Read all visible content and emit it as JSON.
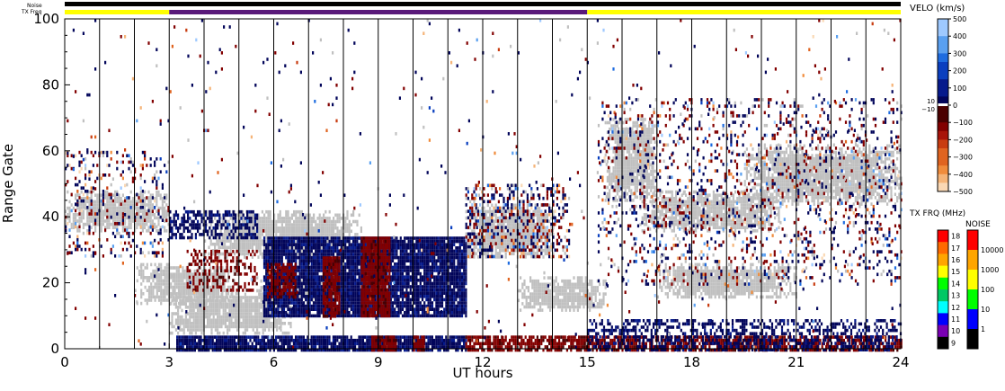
{
  "chart_data": {
    "type": "heatmap",
    "xlabel": "UT hours",
    "ylabel": "Range Gate",
    "xlim": [
      0,
      24
    ],
    "ylim": [
      0,
      100
    ],
    "x_ticks": [
      {
        "value": 0,
        "label": "0"
      },
      {
        "value": 3,
        "label": "3"
      },
      {
        "value": 6,
        "label": "6"
      },
      {
        "value": 9,
        "label": "9"
      },
      {
        "value": 12,
        "label": "12"
      },
      {
        "value": 15,
        "label": "15"
      },
      {
        "value": 18,
        "label": "18"
      },
      {
        "value": 21,
        "label": "21"
      },
      {
        "value": 24,
        "label": "24"
      }
    ],
    "y_ticks": [
      {
        "value": 0,
        "label": "0"
      },
      {
        "value": 20,
        "label": "20"
      },
      {
        "value": 40,
        "label": "40"
      },
      {
        "value": 60,
        "label": "60"
      },
      {
        "value": 80,
        "label": "80"
      },
      {
        "value": 100,
        "label": "100"
      }
    ],
    "status_bars": {
      "noise_label": "Noise",
      "txfreq_label": "TX Freq",
      "txfreq_segments": [
        {
          "start": 0,
          "end": 3,
          "color": "#ffff00"
        },
        {
          "start": 3,
          "end": 15,
          "color": "#5a1a7a"
        },
        {
          "start": 15,
          "end": 24,
          "color": "#ffff00"
        }
      ]
    },
    "velocity_scale": {
      "title": "VELO (km/s)",
      "tick_labels": [
        "500",
        "400",
        "300",
        "200",
        "100",
        "0",
        "−100",
        "−200",
        "−300",
        "−400",
        "−500"
      ],
      "tick_values": [
        500,
        400,
        300,
        200,
        100,
        0,
        -100,
        -200,
        -300,
        -400,
        -500
      ],
      "near_zero_labels": [
        "10",
        "−10"
      ],
      "colors_positive": [
        "#9ec9ff",
        "#5aa0f0",
        "#1e6ce0",
        "#0a3fbf",
        "#061a8c",
        "#02055a"
      ],
      "colors_negative": [
        "#4a0000",
        "#820000",
        "#a8140a",
        "#c83c10",
        "#e06420",
        "#f08c3c",
        "#f5b478",
        "#fad8b4"
      ],
      "ground_scatter_color": "#c0c0c0"
    },
    "txfreq_scale": {
      "title": "TX FRQ (MHz)",
      "labels": [
        "18",
        "17",
        "16",
        "15",
        "14",
        "13",
        "12",
        "11",
        "10",
        "9"
      ],
      "colors": [
        "#ff0000",
        "#ff6a00",
        "#ffa500",
        "#ffff00",
        "#00ff00",
        "#00c864",
        "#00ffff",
        "#0000ff",
        "#7a00b4",
        "#000000"
      ]
    },
    "noise_scale": {
      "title": "NOISE",
      "labels": [
        "10000",
        "1000",
        "100",
        "10",
        "1"
      ],
      "colors": [
        "#ff0000",
        "#ffa500",
        "#ffff00",
        "#00ff00",
        "#0000ff",
        "#000000"
      ]
    },
    "regions": [
      {
        "kind": "ground",
        "x0": 0.0,
        "x1": 3.0,
        "y0": 36,
        "y1": 48
      },
      {
        "kind": "ground",
        "x0": 2.0,
        "x1": 5.0,
        "y0": 14,
        "y1": 26
      },
      {
        "kind": "ground",
        "x0": 3.0,
        "x1": 6.5,
        "y0": 5,
        "y1": 17
      },
      {
        "kind": "ground",
        "x0": 4.0,
        "x1": 8.5,
        "y0": 28,
        "y1": 42
      },
      {
        "kind": "ground",
        "x0": 5.5,
        "x1": 8.0,
        "y0": 15,
        "y1": 22
      },
      {
        "kind": "ground",
        "x0": 15.5,
        "x1": 17.0,
        "y0": 45,
        "y1": 70
      },
      {
        "kind": "ground",
        "x0": 16.5,
        "x1": 20.5,
        "y0": 36,
        "y1": 48
      },
      {
        "kind": "ground",
        "x0": 17.0,
        "x1": 21.0,
        "y0": 16,
        "y1": 26
      },
      {
        "kind": "ground",
        "x0": 19.5,
        "x1": 24.0,
        "y0": 44,
        "y1": 62
      },
      {
        "kind": "ground",
        "x0": 13.0,
        "x1": 15.5,
        "y0": 12,
        "y1": 22
      },
      {
        "kind": "ground",
        "x0": 11.5,
        "x1": 14.0,
        "y0": 28,
        "y1": 44
      },
      {
        "kind": "pos",
        "x0": 5.7,
        "x1": 11.5,
        "y0": 10,
        "y1": 34,
        "density": 0.92
      },
      {
        "kind": "neg",
        "x0": 7.4,
        "x1": 7.9,
        "y0": 10,
        "y1": 28,
        "density": 0.85
      },
      {
        "kind": "neg",
        "x0": 8.5,
        "x1": 9.3,
        "y0": 10,
        "y1": 34,
        "density": 0.9
      },
      {
        "kind": "neg",
        "x0": 5.8,
        "x1": 6.6,
        "y0": 16,
        "y1": 26,
        "density": 0.7
      },
      {
        "kind": "pos",
        "x0": 3.2,
        "x1": 11.5,
        "y0": 0,
        "y1": 4,
        "density": 0.9
      },
      {
        "kind": "pos",
        "x0": 3.0,
        "x1": 5.5,
        "y0": 34,
        "y1": 42,
        "density": 0.55
      },
      {
        "kind": "neg",
        "x0": 3.5,
        "x1": 5.5,
        "y0": 18,
        "y1": 30,
        "density": 0.35
      },
      {
        "kind": "neg",
        "x0": 8.8,
        "x1": 9.5,
        "y0": 0,
        "y1": 4,
        "density": 0.85
      },
      {
        "kind": "neg",
        "x0": 10.0,
        "x1": 10.3,
        "y0": 0,
        "y1": 4,
        "density": 0.85
      },
      {
        "kind": "neg",
        "x0": 11.5,
        "x1": 24.0,
        "y0": 0,
        "y1": 4,
        "density": 0.75
      },
      {
        "kind": "pos",
        "x0": 15.0,
        "x1": 24.0,
        "y0": 0,
        "y1": 9,
        "density": 0.45
      },
      {
        "kind": "mixed",
        "x0": 11.5,
        "x1": 14.5,
        "y0": 28,
        "y1": 50,
        "density": 0.38
      },
      {
        "kind": "mixed",
        "x0": 15.3,
        "x1": 24.0,
        "y0": 20,
        "y1": 76,
        "density": 0.16
      },
      {
        "kind": "mixed",
        "x0": 0.0,
        "x1": 3.0,
        "y0": 28,
        "y1": 60,
        "density": 0.18
      },
      {
        "kind": "mixed",
        "x0": 0.0,
        "x1": 24.0,
        "y0": 0,
        "y1": 100,
        "density": 0.012
      }
    ]
  }
}
